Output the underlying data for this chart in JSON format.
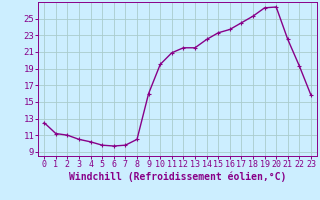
{
  "x": [
    0,
    1,
    2,
    3,
    4,
    5,
    6,
    7,
    8,
    9,
    10,
    11,
    12,
    13,
    14,
    15,
    16,
    17,
    18,
    19,
    20,
    21,
    22,
    23
  ],
  "y": [
    12.5,
    11.2,
    11.0,
    10.5,
    10.2,
    9.8,
    9.7,
    9.8,
    10.5,
    16.0,
    19.5,
    20.9,
    21.5,
    21.5,
    22.5,
    23.3,
    23.7,
    24.5,
    25.3,
    26.3,
    26.4,
    22.5,
    19.3,
    15.8
  ],
  "line_color": "#880088",
  "marker_color": "#880088",
  "bg_color": "#cceeff",
  "grid_color": "#aacccc",
  "xlabel": "Windchill (Refroidissement éolien,°C)",
  "ylim": [
    8.5,
    27
  ],
  "yticks": [
    9,
    11,
    13,
    15,
    17,
    19,
    21,
    23,
    25
  ],
  "xlim": [
    -0.5,
    23.5
  ],
  "xticks": [
    0,
    1,
    2,
    3,
    4,
    5,
    6,
    7,
    8,
    9,
    10,
    11,
    12,
    13,
    14,
    15,
    16,
    17,
    18,
    19,
    20,
    21,
    22,
    23
  ],
  "font_color": "#880088",
  "tick_fontsize": 6.0,
  "xlabel_fontsize": 7.0,
  "linewidth": 1.0,
  "markersize": 2.5
}
